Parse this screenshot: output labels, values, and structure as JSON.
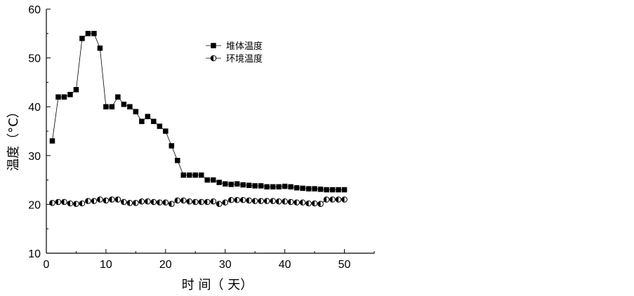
{
  "chart_data": {
    "type": "line",
    "title": "",
    "xlabel": "时 间（ 天）",
    "ylabel": "温度（°C）",
    "xlim": [
      0,
      55
    ],
    "ylim": [
      10,
      60
    ],
    "xticks": [
      0,
      10,
      20,
      30,
      40,
      50
    ],
    "yticks": [
      10,
      20,
      30,
      40,
      50,
      60
    ],
    "grid": false,
    "legend_position": "top-right",
    "series": [
      {
        "name": "堆体温度",
        "marker": "filled-square",
        "color": "#000000",
        "x": [
          1,
          2,
          3,
          4,
          5,
          6,
          7,
          8,
          9,
          10,
          11,
          12,
          13,
          14,
          15,
          16,
          17,
          18,
          19,
          20,
          21,
          22,
          23,
          24,
          25,
          26,
          27,
          28,
          29,
          30,
          31,
          32,
          33,
          34,
          35,
          36,
          37,
          38,
          39,
          40,
          41,
          42,
          43,
          44,
          45,
          46,
          47,
          48,
          49,
          50
        ],
        "values": [
          33,
          42,
          42,
          42.5,
          43.5,
          54,
          55,
          55,
          52,
          40,
          40,
          42,
          40.5,
          40,
          39,
          37,
          38,
          37,
          36,
          35,
          32,
          29,
          26,
          26,
          26,
          26,
          25,
          25,
          24.5,
          24.2,
          24.1,
          24.2,
          24,
          23.9,
          23.8,
          23.8,
          23.6,
          23.6,
          23.6,
          23.7,
          23.6,
          23.4,
          23.3,
          23.2,
          23.2,
          23.1,
          23,
          23,
          23,
          23
        ]
      },
      {
        "name": "环境温度",
        "marker": "half-filled-circle",
        "color": "#000000",
        "x": [
          1,
          2,
          3,
          4,
          5,
          6,
          7,
          8,
          9,
          10,
          11,
          12,
          13,
          14,
          15,
          16,
          17,
          18,
          19,
          20,
          21,
          22,
          23,
          24,
          25,
          26,
          27,
          28,
          29,
          30,
          31,
          32,
          33,
          34,
          35,
          36,
          37,
          38,
          39,
          40,
          41,
          42,
          43,
          44,
          45,
          46,
          47,
          48,
          49,
          50
        ],
        "values": [
          20.3,
          20.5,
          20.5,
          20.2,
          20.1,
          20.2,
          20.7,
          20.7,
          21,
          20.8,
          21,
          21,
          20.5,
          20.3,
          20.3,
          20.6,
          20.6,
          20.5,
          20.4,
          20.4,
          20.1,
          20.8,
          20.8,
          20.6,
          20.5,
          20.5,
          20.5,
          20.6,
          20.1,
          20.4,
          20.9,
          20.9,
          20.9,
          20.8,
          20.7,
          20.7,
          20.7,
          20.7,
          20.6,
          20.6,
          20.5,
          20.4,
          20.4,
          20.2,
          20.2,
          20.1,
          21,
          21,
          21,
          21
        ]
      }
    ]
  }
}
